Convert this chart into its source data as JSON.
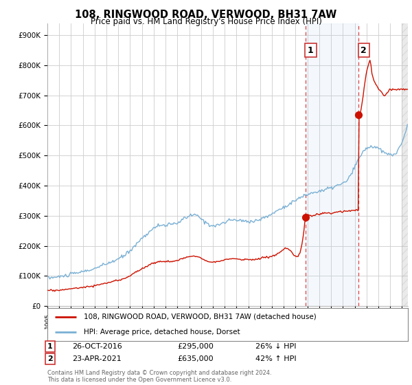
{
  "title": "108, RINGWOOD ROAD, VERWOOD, BH31 7AW",
  "subtitle": "Price paid vs. HM Land Registry's House Price Index (HPI)",
  "title_fontsize": 10.5,
  "subtitle_fontsize": 8.5,
  "background_color": "#ffffff",
  "plot_bg_color": "#ffffff",
  "grid_color": "#cccccc",
  "ylabel_ticks": [
    "£0",
    "£100K",
    "£200K",
    "£300K",
    "£400K",
    "£500K",
    "£600K",
    "£700K",
    "£800K",
    "£900K"
  ],
  "ytick_values": [
    0,
    100000,
    200000,
    300000,
    400000,
    500000,
    600000,
    700000,
    800000,
    900000
  ],
  "ylim": [
    0,
    940000
  ],
  "xlim_start": 1995.0,
  "xlim_end": 2025.5,
  "hpi_color": "#7ab0d4",
  "price_color": "#cc1100",
  "vline_color": "#dd4444",
  "vline_style": "--",
  "legend_label_price": "108, RINGWOOD ROAD, VERWOOD, BH31 7AW (detached house)",
  "legend_label_hpi": "HPI: Average price, detached house, Dorset",
  "sale1_year": 2016.82,
  "sale1_price": 295000,
  "sale2_year": 2021.31,
  "sale2_price": 635000,
  "footnote": "Contains HM Land Registry data © Crown copyright and database right 2024.\nThis data is licensed under the Open Government Licence v3.0."
}
